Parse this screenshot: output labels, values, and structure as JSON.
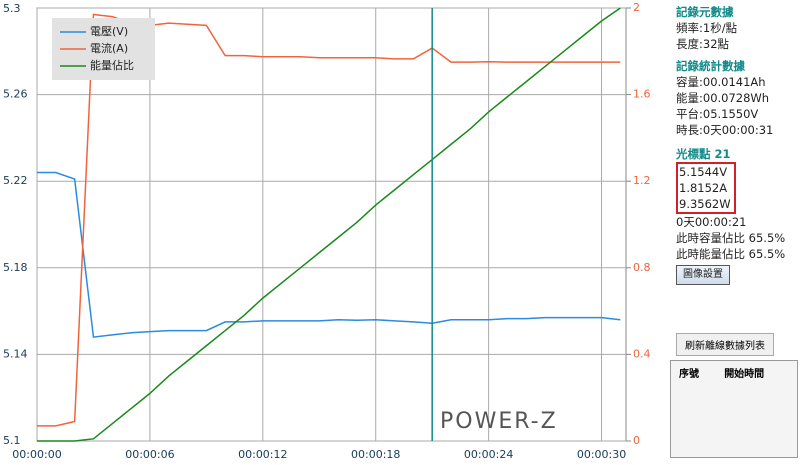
{
  "chart_data": {
    "type": "line",
    "x": [
      0,
      1,
      2,
      3,
      4,
      5,
      6,
      7,
      8,
      9,
      10,
      11,
      12,
      13,
      14,
      15,
      16,
      17,
      18,
      19,
      20,
      21,
      22,
      23,
      24,
      25,
      26,
      27,
      28,
      29,
      30,
      31
    ],
    "series": [
      {
        "name": "電壓(V)",
        "color": "#2b8be0",
        "axis": "y",
        "values": [
          5.224,
          5.224,
          5.221,
          5.148,
          5.149,
          5.15,
          5.1505,
          5.151,
          5.151,
          5.151,
          5.155,
          5.155,
          5.1555,
          5.1555,
          5.1555,
          5.1555,
          5.156,
          5.1558,
          5.156,
          5.1555,
          5.155,
          5.1544,
          5.156,
          5.156,
          5.156,
          5.1565,
          5.1565,
          5.157,
          5.157,
          5.157,
          5.157,
          5.156
        ]
      },
      {
        "name": "電流(A)",
        "color": "#f0643c",
        "axis": "y2",
        "values": [
          0.07,
          0.07,
          0.09,
          1.97,
          1.96,
          1.93,
          1.92,
          1.93,
          1.925,
          1.92,
          1.78,
          1.78,
          1.775,
          1.775,
          1.775,
          1.77,
          1.77,
          1.77,
          1.77,
          1.765,
          1.765,
          1.815,
          1.75,
          1.75,
          1.752,
          1.75,
          1.75,
          1.75,
          1.75,
          1.75,
          1.75,
          1.75
        ]
      },
      {
        "name": "能量佔比",
        "color": "#1a8a1a",
        "axis": "y2",
        "values": [
          0,
          0,
          0,
          0.01,
          0.08,
          0.15,
          0.22,
          0.3,
          0.37,
          0.44,
          0.51,
          0.58,
          0.66,
          0.73,
          0.8,
          0.87,
          0.94,
          1.01,
          1.09,
          1.16,
          1.23,
          1.3,
          1.37,
          1.44,
          1.52,
          1.59,
          1.66,
          1.73,
          1.8,
          1.87,
          1.94,
          2.0
        ]
      }
    ],
    "xlim": [
      0,
      31.3
    ],
    "xticks": [
      {
        "value": 0,
        "label": "00:00:00"
      },
      {
        "value": 6,
        "label": "00:00:06"
      },
      {
        "value": 12,
        "label": "00:00:12"
      },
      {
        "value": 18,
        "label": "00:00:18"
      },
      {
        "value": 24,
        "label": "00:00:24"
      },
      {
        "value": 30,
        "label": "00:00:30"
      }
    ],
    "ylim": [
      5.1,
      5.3
    ],
    "yticks": [
      5.1,
      5.14,
      5.18,
      5.22,
      5.26,
      5.3
    ],
    "y2lim": [
      0,
      2
    ],
    "y2ticks": [
      0,
      0.4,
      0.8,
      1.2,
      1.6,
      2
    ],
    "y2color": "#f0643c",
    "grid": true,
    "legend": "upper left",
    "cursor_x": 21,
    "cursor_color": "#138a8a",
    "watermark": "POWER-Z"
  },
  "panel": {
    "meta_title": "記錄元數據",
    "meta": [
      "頻率:1秒/點",
      "長度:32點"
    ],
    "stats_title": "記錄統計數據",
    "stats": [
      "容量:00.0141Ah",
      "能量:00.0728Wh",
      "平台:05.1550V",
      "時長:0天00:00:31"
    ],
    "cursor_title": "光標點 21",
    "cursor_values": [
      "5.1544V",
      "1.8152A",
      "9.3562W"
    ],
    "cursor_info": [
      "0天00:00:21",
      "此時容量佔比 65.5%",
      "此時能量佔比 65.5%"
    ],
    "settings_button": "圖像設置",
    "refresh_button": "刷新離線數據列表",
    "table_headers": [
      "序號",
      "開始時間"
    ]
  }
}
